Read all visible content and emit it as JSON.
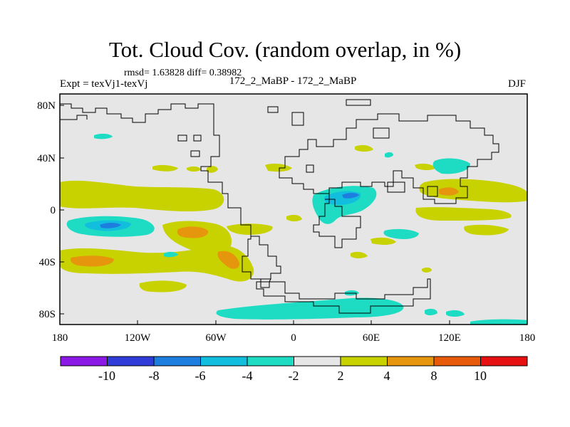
{
  "figure": {
    "title": "Tot. Cloud Cov. (random overlap, in %)",
    "stats": "rmsd= 1.63828 diff= 0.38982",
    "experiment": "Expt = texVj1-texVj",
    "runs": "172_2_MaBP - 172_2_MaBP",
    "season": "DJF"
  },
  "axes": {
    "x_ticks": [
      "180",
      "120W",
      "60W",
      "0",
      "60E",
      "120E",
      "180"
    ],
    "y_ticks": [
      "80N",
      "40N",
      "0",
      "40S",
      "80S"
    ]
  },
  "colorbar": {
    "labels": [
      "-10",
      "-8",
      "-6",
      "-4",
      "-2",
      "2",
      "4",
      "8",
      "10"
    ],
    "colors": [
      "#8c18e6",
      "#2f3cd8",
      "#1e7ee0",
      "#12bede",
      "#1edcc4",
      "#e6e6e6",
      "#c8d200",
      "#e6960c",
      "#e65a0a",
      "#e61010"
    ]
  }
}
